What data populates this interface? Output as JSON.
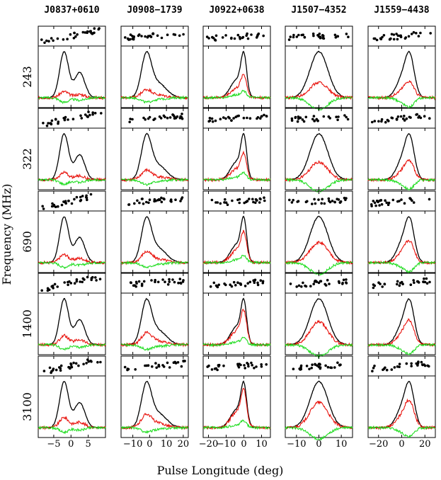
{
  "chart_data": {
    "type": "line",
    "xlabel": "Pulse Longitude (deg)",
    "ylabel": "Frequency (MHz)",
    "rows": [
      "243",
      "322",
      "690",
      "1400",
      "3100"
    ],
    "colors": {
      "total": "#000000",
      "linear": "#e8120c",
      "circular": "#22dd22"
    },
    "columns": [
      {
        "name": "J0837+0610",
        "xlim": [
          -9.5,
          10
        ],
        "ticks": [
          -5,
          0,
          5
        ],
        "comps": [
          [
            -2,
            1.3,
            1.0
          ],
          [
            2.5,
            1.5,
            0.55
          ]
        ],
        "pf": 0.22,
        "vf": -0.1,
        "pa_slope": 1.2
      },
      {
        "name": "J0908−1739",
        "xlim": [
          -17,
          23
        ],
        "ticks": [
          -10,
          0,
          10,
          20
        ],
        "comps": [
          [
            -2,
            3,
            1.0
          ],
          [
            5,
            5,
            0.35
          ]
        ],
        "pf": 0.3,
        "vf": -0.1,
        "pa_slope": 0.4
      },
      {
        "name": "J0922+0638",
        "xlim": [
          -23,
          15
        ],
        "ticks": [
          -20,
          -10,
          0,
          10
        ],
        "comps": [
          [
            0,
            1.6,
            0.9
          ],
          [
            -4,
            3.5,
            0.45
          ]
        ],
        "pf": 0.85,
        "vf": 0.15,
        "pa_slope": 0.3
      },
      {
        "name": "J1507−4352",
        "xlim": [
          -15,
          15
        ],
        "ticks": [
          -10,
          0,
          10
        ],
        "comps": [
          [
            0,
            4,
            1.0
          ]
        ],
        "pf": 0.55,
        "vf": -0.25,
        "pa_slope": 0.2
      },
      {
        "name": "J1559−4438",
        "xlim": [
          -29,
          29
        ],
        "ticks": [
          -20,
          0,
          20
        ],
        "comps": [
          [
            7,
            4,
            1.0
          ],
          [
            0,
            5,
            0.45
          ]
        ],
        "pf": 0.6,
        "vf": -0.2,
        "pa_slope": 0.5
      }
    ]
  }
}
